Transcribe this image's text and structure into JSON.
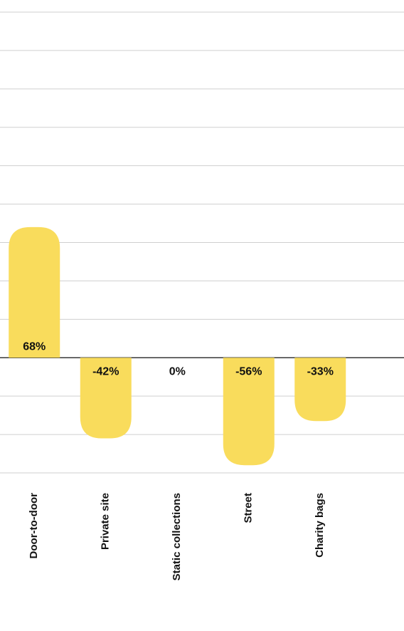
{
  "chart_data": {
    "type": "bar",
    "categories": [
      "Door-to-door",
      "Private site",
      "Static collections",
      "Street",
      "Charity bags"
    ],
    "values": [
      68,
      -42,
      0,
      -56,
      -33
    ],
    "value_labels": [
      "68%",
      "-42%",
      "0%",
      "-56%",
      "-33%"
    ],
    "color": "#f9dc5c",
    "ylim": [
      -60,
      180
    ],
    "yticks": [
      -60,
      -40,
      -20,
      0,
      20,
      40,
      60,
      80,
      100,
      120,
      140,
      160,
      180
    ],
    "grid": true
  }
}
